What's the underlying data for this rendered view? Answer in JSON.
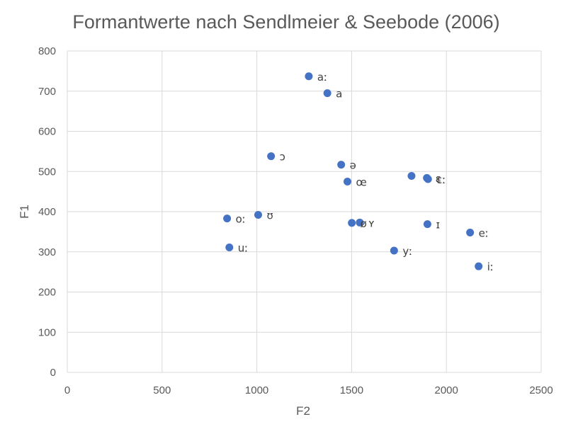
{
  "chart_data": {
    "type": "scatter",
    "title": "Formantwerte nach Sendlmeier & Seebode (2006)",
    "xlabel": "F2",
    "ylabel": "F1",
    "xlim": [
      0,
      2500
    ],
    "ylim": [
      0,
      800
    ],
    "xticks": [
      0,
      500,
      1000,
      1500,
      2000,
      2500
    ],
    "yticks": [
      0,
      100,
      200,
      300,
      400,
      500,
      600,
      700,
      800
    ],
    "grid": true,
    "legend": "none",
    "marker_color": "#4472C4",
    "points": [
      {
        "label": "aː",
        "x": 1274,
        "y": 737
      },
      {
        "label": "a",
        "x": 1372,
        "y": 695
      },
      {
        "label": "ɔ",
        "x": 1075,
        "y": 538
      },
      {
        "label": "ə",
        "x": 1445,
        "y": 517
      },
      {
        "label": "œ",
        "x": 1478,
        "y": 475
      },
      {
        "label": "",
        "x": 1816,
        "y": 489
      },
      {
        "label": "ɛ",
        "x": 1897,
        "y": 484
      },
      {
        "label": "ɛː",
        "x": 1903,
        "y": 481
      },
      {
        "label": "ʊ",
        "x": 1007,
        "y": 392
      },
      {
        "label": "oː",
        "x": 843,
        "y": 383
      },
      {
        "label": "ø",
        "x": 1501,
        "y": 372
      },
      {
        "label": "ʏ",
        "x": 1543,
        "y": 373
      },
      {
        "label": "ɪ",
        "x": 1900,
        "y": 369
      },
      {
        "label": "eː",
        "x": 2125,
        "y": 348
      },
      {
        "label": "uː",
        "x": 855,
        "y": 311
      },
      {
        "label": "yː",
        "x": 1724,
        "y": 303
      },
      {
        "label": "iː",
        "x": 2170,
        "y": 264
      }
    ]
  }
}
